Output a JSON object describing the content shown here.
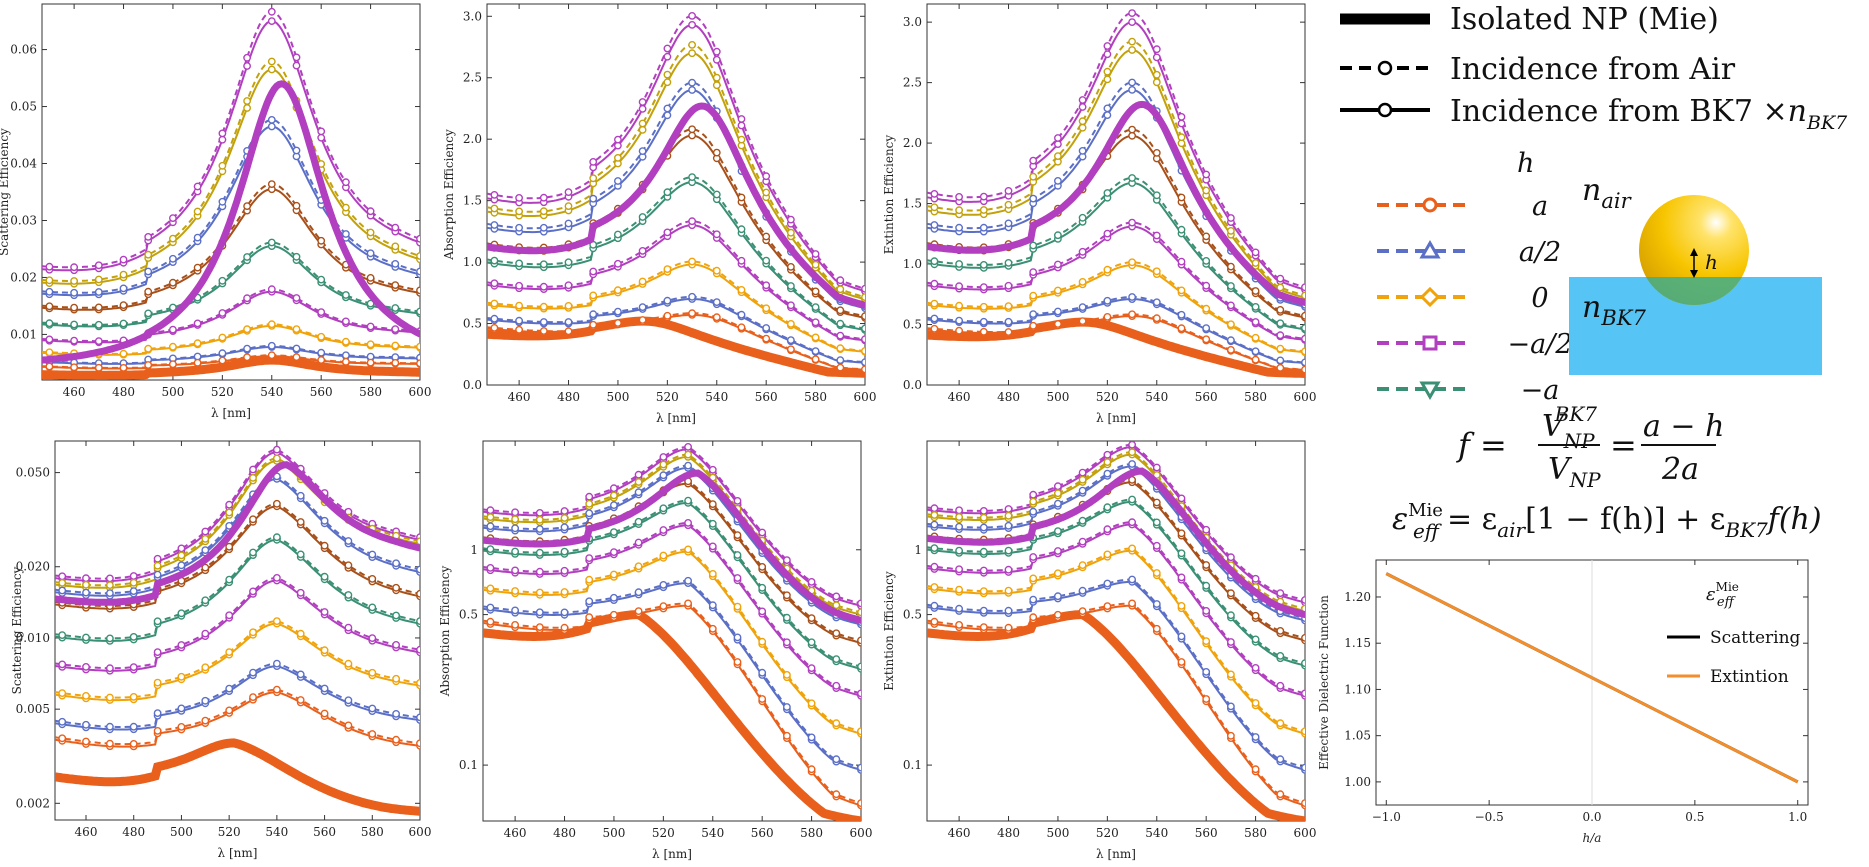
{
  "legend": {
    "mie_label": "Isolated NP (Mie)",
    "air_label": "Incidence from Air",
    "bk7_label": "Incidence from BK7 ×",
    "bk7_n": "n",
    "bk7_sub": "BK7",
    "h_title": "h",
    "h_items": [
      {
        "label": "a",
        "color": "#e8601c",
        "marker": "circle"
      },
      {
        "label": "a/2",
        "color": "#5b6fc7",
        "marker": "triangle-up"
      },
      {
        "label": "0",
        "color": "#f0a30a",
        "marker": "diamond"
      },
      {
        "label": "−a/2",
        "color": "#b13fbf",
        "marker": "square"
      },
      {
        "label": "−a",
        "color": "#3a8f74",
        "marker": "triangle-down"
      }
    ]
  },
  "schematic": {
    "n_air": "n",
    "n_air_sub": "air",
    "n_bk7": "n",
    "n_bk7_sub": "BK7",
    "h_label": "h",
    "glass_color": "#56c5f5",
    "particle_color": "#f5c400"
  },
  "equations": {
    "f_lhs": "f =",
    "f_num": "V",
    "f_num_sup": "BK7",
    "f_num_sub": "NP",
    "f_den": "V",
    "f_den_sub": "NP",
    "f_eq": "=",
    "f_num2": "a − h",
    "f_den2": "2a",
    "eps_lhs": "ε",
    "eps_sup": "Mie",
    "eps_sub": "eff",
    "eps_rhs_1": "= ε",
    "eps_rhs_1_sub": "air",
    "eps_rhs_2": "[1 − f(h)] + ε",
    "eps_rhs_2_sub": "BK7",
    "eps_rhs_3": "f(h)"
  },
  "chart_data": [
    {
      "id": "p1",
      "type": "line",
      "scale": "linear",
      "ylabel": "Scattering Efficiency",
      "xlabel": "λ [nm]",
      "xlim": [
        447,
        600
      ],
      "ylim": [
        0.002,
        0.068
      ],
      "xticks": [
        460,
        480,
        500,
        520,
        540,
        560,
        580,
        600
      ],
      "yticks": [
        0.01,
        0.02,
        0.03,
        0.04,
        0.05,
        0.06
      ],
      "ytick_labels": [
        "0.01",
        "0.02",
        "0.03",
        "0.04",
        "0.05",
        "0.06"
      ],
      "peak_x": 540,
      "mie": {
        "peak": 0.054,
        "base": 0.003,
        "series_color": "#b13fbf"
      },
      "mie2": {
        "peak": 0.0055,
        "base": 0.0028,
        "series_color": "#e8601c"
      },
      "series": [
        {
          "color": "#b13fbf",
          "peak": 0.065,
          "base": 0.019
        },
        {
          "color": "#c3a10a",
          "peak": 0.0565,
          "base": 0.017
        },
        {
          "color": "#5b6fc7",
          "peak": 0.0465,
          "base": 0.0155
        },
        {
          "color": "#a8501a",
          "peak": 0.0355,
          "base": 0.0135
        },
        {
          "color": "#3a8f74",
          "peak": 0.0255,
          "base": 0.011
        },
        {
          "color": "#b13fbf",
          "peak": 0.0175,
          "base": 0.0085
        },
        {
          "color": "#f0a30a",
          "peak": 0.0115,
          "base": 0.0065
        },
        {
          "color": "#5b6fc7",
          "peak": 0.0078,
          "base": 0.005
        },
        {
          "color": "#e8601c",
          "peak": 0.0062,
          "base": 0.0042
        }
      ]
    },
    {
      "id": "p2",
      "type": "line",
      "scale": "linear",
      "ylabel": "Absorption Efficiency",
      "xlabel": "λ [nm]",
      "xlim": [
        447,
        600
      ],
      "ylim": [
        0,
        3.1
      ],
      "xticks": [
        460,
        480,
        500,
        520,
        540,
        560,
        580,
        600
      ],
      "yticks": [
        0,
        0.5,
        1.0,
        1.5,
        2.0,
        2.5,
        3.0
      ],
      "ytick_labels": [
        "0.0",
        "0.5",
        "1.0",
        "1.5",
        "2.0",
        "2.5",
        "3.0"
      ],
      "peak_x": 530,
      "mie": {
        "peak": 2.27,
        "base": 1.05,
        "end": 0.47,
        "series_color": "#b13fbf"
      },
      "mie2": {
        "peak": 0.52,
        "base": 0.4,
        "end": 0.07,
        "series_color": "#e8601c"
      },
      "series": [
        {
          "color": "#b13fbf",
          "peak": 2.93,
          "base": 1.42,
          "end": 0.55
        },
        {
          "color": "#c3a10a",
          "peak": 2.7,
          "base": 1.32,
          "end": 0.5
        },
        {
          "color": "#5b6fc7",
          "peak": 2.4,
          "base": 1.2,
          "end": 0.45
        },
        {
          "color": "#a8501a",
          "peak": 2.03,
          "base": 1.06,
          "end": 0.4
        },
        {
          "color": "#3a8f74",
          "peak": 1.65,
          "base": 0.95,
          "end": 0.33
        },
        {
          "color": "#b13fbf",
          "peak": 1.3,
          "base": 0.78,
          "end": 0.27
        },
        {
          "color": "#f0a30a",
          "peak": 0.98,
          "base": 0.63,
          "end": 0.2
        },
        {
          "color": "#5b6fc7",
          "peak": 0.7,
          "base": 0.52,
          "end": 0.13
        },
        {
          "color": "#e8601c",
          "peak": 0.57,
          "base": 0.45,
          "end": 0.08
        }
      ]
    },
    {
      "id": "p3",
      "type": "line",
      "scale": "linear",
      "ylabel": "Extintion Efficiency",
      "xlabel": "λ [nm]",
      "xlim": [
        447,
        600
      ],
      "ylim": [
        0,
        3.15
      ],
      "xticks": [
        460,
        480,
        500,
        520,
        540,
        560,
        580,
        600
      ],
      "yticks": [
        0,
        0.5,
        1.0,
        1.5,
        2.0,
        2.5,
        3.0
      ],
      "ytick_labels": [
        "0.0",
        "0.5",
        "1.0",
        "1.5",
        "2.0",
        "2.5",
        "3.0"
      ],
      "peak_x": 530,
      "mie": {
        "peak": 2.32,
        "base": 1.07,
        "end": 0.5,
        "series_color": "#b13fbf"
      },
      "mie2": {
        "peak": 0.52,
        "base": 0.4,
        "end": 0.07,
        "series_color": "#e8601c"
      },
      "series": [
        {
          "color": "#b13fbf",
          "peak": 3.0,
          "base": 1.45,
          "end": 0.57
        },
        {
          "color": "#c3a10a",
          "peak": 2.77,
          "base": 1.35,
          "end": 0.52
        },
        {
          "color": "#5b6fc7",
          "peak": 2.44,
          "base": 1.22,
          "end": 0.47
        },
        {
          "color": "#a8501a",
          "peak": 2.06,
          "base": 1.08,
          "end": 0.41
        },
        {
          "color": "#3a8f74",
          "peak": 1.67,
          "base": 0.96,
          "end": 0.34
        },
        {
          "color": "#b13fbf",
          "peak": 1.31,
          "base": 0.79,
          "end": 0.28
        },
        {
          "color": "#f0a30a",
          "peak": 0.99,
          "base": 0.64,
          "end": 0.2
        },
        {
          "color": "#5b6fc7",
          "peak": 0.71,
          "base": 0.53,
          "end": 0.13
        },
        {
          "color": "#e8601c",
          "peak": 0.57,
          "base": 0.45,
          "end": 0.08
        }
      ]
    },
    {
      "id": "p4",
      "type": "line",
      "scale": "log",
      "ylabel": "Scattering Efficiency",
      "xlabel": "λ [nm]",
      "xlim": [
        447,
        600
      ],
      "ylim": [
        0.0017,
        0.068
      ],
      "xticks": [
        460,
        480,
        500,
        520,
        540,
        560,
        580,
        600
      ],
      "yticks": [
        0.002,
        0.005,
        0.01,
        0.02,
        0.05
      ],
      "ytick_labels": [
        "0.002",
        "0.005",
        "0.010",
        "0.020",
        "0.050"
      ],
      "peak_x": 540,
      "mie": {
        "peak": 0.054,
        "base": 0.0135,
        "end": 0.024,
        "series_color": "#b13fbf"
      },
      "mie2": {
        "peak": 0.0036,
        "base": 0.0025,
        "end": 0.00185,
        "series_color": "#e8601c"
      },
      "series": [
        {
          "color": "#b13fbf",
          "peak": 0.061,
          "base": 0.0165,
          "end": 0.026
        },
        {
          "color": "#c3a10a",
          "peak": 0.056,
          "base": 0.0155,
          "end": 0.025
        },
        {
          "color": "#5b6fc7",
          "peak": 0.047,
          "base": 0.0145,
          "end": 0.019
        },
        {
          "color": "#a8501a",
          "peak": 0.036,
          "base": 0.013,
          "end": 0.015
        },
        {
          "color": "#3a8f74",
          "peak": 0.026,
          "base": 0.0095,
          "end": 0.0115
        },
        {
          "color": "#b13fbf",
          "peak": 0.0175,
          "base": 0.0072,
          "end": 0.0087
        },
        {
          "color": "#f0a30a",
          "peak": 0.0115,
          "base": 0.0055,
          "end": 0.0063
        },
        {
          "color": "#5b6fc7",
          "peak": 0.0076,
          "base": 0.0042,
          "end": 0.0045
        },
        {
          "color": "#e8601c",
          "peak": 0.0059,
          "base": 0.0036,
          "end": 0.0035
        }
      ]
    },
    {
      "id": "p5",
      "type": "line",
      "scale": "log",
      "ylabel": "Absorption Efficiency",
      "xlabel": "λ [nm]",
      "xlim": [
        447,
        600
      ],
      "ylim": [
        0.055,
        3.2
      ],
      "xticks": [
        460,
        480,
        500,
        520,
        540,
        560,
        580,
        600
      ],
      "yticks": [
        0.1,
        0.5,
        1
      ],
      "ytick_labels": [
        "0.1",
        "0.5",
        "1"
      ],
      "peak_x": 530,
      "mie": {
        "peak": 2.27,
        "base": 1.05,
        "end": 0.47,
        "series_color": "#b13fbf"
      },
      "mie2": {
        "peak": 0.5,
        "base": 0.4,
        "end": 0.055,
        "series_color": "#e8601c"
      },
      "series": [
        {
          "color": "#b13fbf",
          "peak": 2.93,
          "base": 1.42,
          "end": 0.55
        },
        {
          "color": "#c3a10a",
          "peak": 2.7,
          "base": 1.32,
          "end": 0.5
        },
        {
          "color": "#5b6fc7",
          "peak": 2.4,
          "base": 1.2,
          "end": 0.45
        },
        {
          "color": "#a8501a",
          "peak": 2.03,
          "base": 1.06,
          "end": 0.37
        },
        {
          "color": "#3a8f74",
          "peak": 1.65,
          "base": 0.95,
          "end": 0.28
        },
        {
          "color": "#b13fbf",
          "peak": 1.3,
          "base": 0.78,
          "end": 0.21
        },
        {
          "color": "#f0a30a",
          "peak": 0.98,
          "base": 0.63,
          "end": 0.14
        },
        {
          "color": "#5b6fc7",
          "peak": 0.7,
          "base": 0.52,
          "end": 0.095
        },
        {
          "color": "#e8601c",
          "peak": 0.55,
          "base": 0.45,
          "end": 0.065
        }
      ]
    },
    {
      "id": "p6",
      "type": "line",
      "scale": "log",
      "ylabel": "Extintion Efficiency",
      "xlabel": "λ [nm]",
      "xlim": [
        447,
        600
      ],
      "ylim": [
        0.055,
        3.2
      ],
      "xticks": [
        460,
        480,
        500,
        520,
        540,
        560,
        580,
        600
      ],
      "yticks": [
        0.1,
        0.5,
        1
      ],
      "ytick_labels": [
        "0.1",
        "0.5",
        "1"
      ],
      "peak_x": 530,
      "mie": {
        "peak": 2.32,
        "base": 1.07,
        "end": 0.5,
        "series_color": "#b13fbf"
      },
      "mie2": {
        "peak": 0.5,
        "base": 0.4,
        "end": 0.055,
        "series_color": "#e8601c"
      },
      "series": [
        {
          "color": "#b13fbf",
          "peak": 3.0,
          "base": 1.45,
          "end": 0.57
        },
        {
          "color": "#c3a10a",
          "peak": 2.77,
          "base": 1.35,
          "end": 0.52
        },
        {
          "color": "#5b6fc7",
          "peak": 2.44,
          "base": 1.22,
          "end": 0.47
        },
        {
          "color": "#a8501a",
          "peak": 2.06,
          "base": 1.08,
          "end": 0.38
        },
        {
          "color": "#3a8f74",
          "peak": 1.67,
          "base": 0.96,
          "end": 0.29
        },
        {
          "color": "#b13fbf",
          "peak": 1.31,
          "base": 0.79,
          "end": 0.21
        },
        {
          "color": "#f0a30a",
          "peak": 0.99,
          "base": 0.64,
          "end": 0.14
        },
        {
          "color": "#5b6fc7",
          "peak": 0.71,
          "base": 0.53,
          "end": 0.095
        },
        {
          "color": "#e8601c",
          "peak": 0.55,
          "base": 0.45,
          "end": 0.065
        }
      ]
    },
    {
      "id": "p7",
      "type": "line",
      "scale": "linear",
      "ylabel": "Effective Dielectric Function",
      "xlabel": "h/a",
      "xlim": [
        -1.05,
        1.05
      ],
      "ylim": [
        0.975,
        1.24
      ],
      "xticks": [
        -1.0,
        -0.5,
        0.0,
        0.5,
        1.0
      ],
      "xtick_labels": [
        "−1.0",
        "−0.5",
        "0.0",
        "0.5",
        "1.0"
      ],
      "yticks": [
        1.0,
        1.05,
        1.1,
        1.15,
        1.2
      ],
      "ytick_labels": [
        "1.00",
        "1.05",
        "1.10",
        "1.15",
        "1.20"
      ],
      "legend_title": "ε",
      "legend_title_sup": "Mie",
      "legend_title_sub": "eff",
      "series": [
        {
          "name": "Scattering",
          "color": "#000000",
          "x": [
            -1.0,
            1.0
          ],
          "y": [
            1.2253,
            1.0
          ]
        },
        {
          "name": "Extintion",
          "color": "#f28e2b",
          "x": [
            -1.0,
            1.0
          ],
          "y": [
            1.2253,
            1.0
          ]
        }
      ]
    }
  ]
}
